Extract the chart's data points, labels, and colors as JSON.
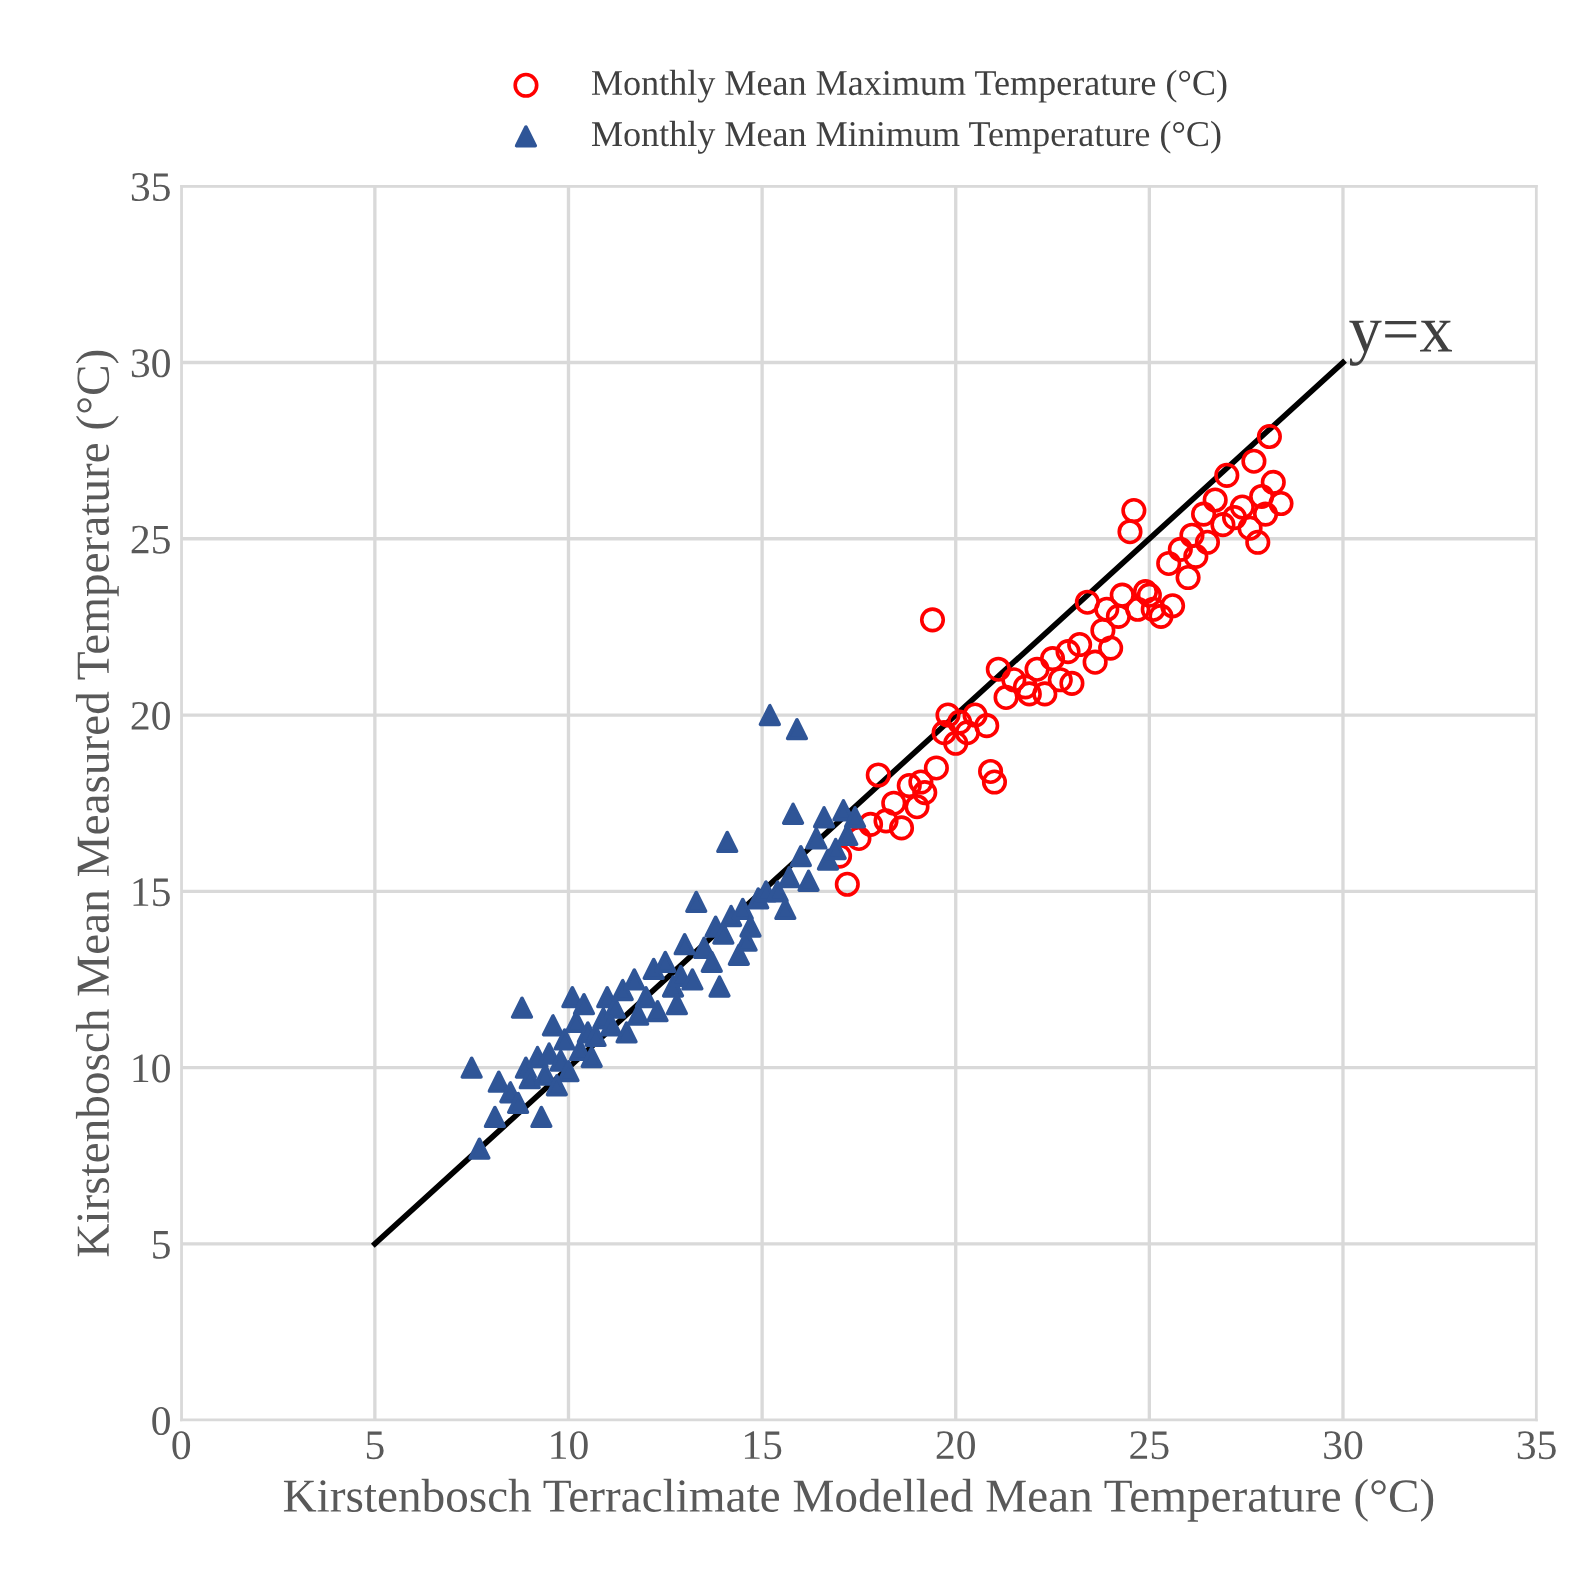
{
  "chart_data": {
    "type": "scatter",
    "xlabel": "Kirstenbosch Terraclimate Modelled Mean Temperature (°C)",
    "ylabel": "Kirstenbosch Mean Measured Temperature (°C)",
    "xlim": [
      0,
      35
    ],
    "ylim": [
      0,
      35
    ],
    "xticks": [
      0,
      5,
      10,
      15,
      20,
      25,
      30,
      35
    ],
    "yticks": [
      0,
      5,
      10,
      15,
      20,
      25,
      30,
      35
    ],
    "grid": true,
    "legend": "top",
    "annotations": [
      {
        "text": "y=x",
        "x": 30,
        "y": 30
      }
    ],
    "series": [
      {
        "name": "Monthly Mean Maximum Temperature (°C)",
        "color": "#ff0000",
        "marker": "circle",
        "x": [
          17.0,
          17.2,
          17.5,
          17.8,
          18.0,
          18.2,
          18.4,
          18.6,
          18.8,
          19.0,
          19.2,
          19.4,
          19.5,
          19.7,
          19.8,
          20.0,
          20.1,
          20.3,
          20.5,
          20.8,
          20.9,
          21.0,
          21.1,
          21.3,
          21.5,
          21.8,
          22.1,
          22.3,
          22.5,
          22.7,
          22.9,
          23.0,
          23.2,
          23.4,
          23.6,
          23.8,
          24.0,
          24.2,
          24.3,
          24.5,
          24.6,
          24.7,
          24.9,
          25.1,
          25.3,
          25.5,
          25.6,
          25.8,
          26.0,
          26.2,
          26.4,
          26.5,
          26.7,
          26.9,
          27.0,
          27.2,
          27.4,
          27.6,
          27.7,
          27.8,
          27.9,
          28.0,
          28.1,
          28.2,
          28.4,
          25.0,
          23.9,
          21.9,
          19.1,
          26.1
        ],
        "values": [
          16.0,
          15.2,
          16.5,
          16.9,
          18.3,
          17.0,
          17.5,
          16.8,
          18.0,
          17.4,
          17.8,
          22.7,
          18.5,
          19.5,
          20.0,
          19.2,
          19.8,
          19.5,
          20.0,
          19.7,
          18.4,
          18.1,
          21.3,
          20.5,
          21.0,
          20.8,
          21.3,
          20.6,
          21.6,
          21.0,
          21.8,
          20.9,
          22.0,
          23.2,
          21.5,
          22.4,
          21.9,
          22.8,
          23.4,
          25.2,
          25.8,
          23.0,
          23.5,
          23.0,
          22.8,
          24.3,
          23.1,
          24.7,
          23.9,
          24.5,
          25.7,
          24.9,
          26.1,
          25.4,
          26.8,
          25.6,
          25.9,
          25.3,
          27.2,
          24.9,
          26.2,
          25.7,
          27.9,
          26.6,
          26.0,
          23.4,
          23.0,
          20.6,
          18.1,
          25.1
        ]
      },
      {
        "name": "Monthly Mean Minimum Temperature (°C)",
        "color": "#2f5597",
        "marker": "triangle",
        "x": [
          7.5,
          7.7,
          8.1,
          8.2,
          8.5,
          8.7,
          8.8,
          8.9,
          9.0,
          9.2,
          9.3,
          9.4,
          9.5,
          9.6,
          9.8,
          9.9,
          10.0,
          10.1,
          10.2,
          10.3,
          10.4,
          10.5,
          10.7,
          10.9,
          11.0,
          11.2,
          11.4,
          11.5,
          11.7,
          11.8,
          12.0,
          12.2,
          12.3,
          12.5,
          12.7,
          12.9,
          13.0,
          13.2,
          13.3,
          13.5,
          13.7,
          13.8,
          14.0,
          14.1,
          14.2,
          14.4,
          14.5,
          14.7,
          14.9,
          15.1,
          15.2,
          15.4,
          15.6,
          15.7,
          15.8,
          15.9,
          16.0,
          16.2,
          16.4,
          16.6,
          16.7,
          16.9,
          17.1,
          17.2,
          17.4,
          13.9,
          12.8,
          11.1,
          9.7,
          10.6,
          14.6
        ],
        "values": [
          10.0,
          7.7,
          8.6,
          9.6,
          9.3,
          9.0,
          11.7,
          10.0,
          9.7,
          10.3,
          8.6,
          9.8,
          10.4,
          11.2,
          10.2,
          10.8,
          9.9,
          12.0,
          11.3,
          10.5,
          11.8,
          11.0,
          10.9,
          11.4,
          12.0,
          11.7,
          12.2,
          11.0,
          12.5,
          11.5,
          12.0,
          12.8,
          11.6,
          13.0,
          12.3,
          12.6,
          13.5,
          12.5,
          14.7,
          13.4,
          13.0,
          14.0,
          13.8,
          16.4,
          14.3,
          13.2,
          14.5,
          14.0,
          14.8,
          15.0,
          20.0,
          15.0,
          14.5,
          15.4,
          17.2,
          19.6,
          16.0,
          15.3,
          16.5,
          17.1,
          15.9,
          16.2,
          17.3,
          16.6,
          17.1,
          12.3,
          11.8,
          11.2,
          9.5,
          10.3,
          13.6
        ]
      },
      {
        "type": "line",
        "color": "#000000",
        "marker": "none",
        "line_style": "solid",
        "x": [
          5,
          30
        ],
        "values": [
          5,
          30
        ]
      }
    ]
  }
}
